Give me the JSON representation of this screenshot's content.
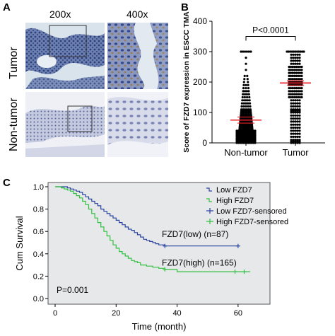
{
  "panel_a": {
    "letter": "A",
    "col_labels": [
      "200x",
      "400x"
    ],
    "row_labels": [
      "Tumor",
      "Non-tumor"
    ]
  },
  "panel_b": {
    "letter": "B"
  },
  "panel_c": {
    "letter": "C"
  },
  "colors": {
    "tumor_tissue": "#6b7fae",
    "tissue_bg": "#dde6ee",
    "nontumor_tissue": "#9aa3c4",
    "mean_line": "#e8202a",
    "low_curve": "#2a43a0",
    "high_curve": "#33c040",
    "plot_bg": "#e6e8ea"
  },
  "chart_data": [
    {
      "type": "scatter",
      "ylabel": "Score of FZD7 expression in ESCC TMA",
      "categories": [
        "Non-tumor",
        "Tumor"
      ],
      "ylim": [
        0,
        400
      ],
      "yticks": [
        0,
        100,
        200,
        300,
        400
      ],
      "annotation": "P<0.0001",
      "series": [
        {
          "name": "Non-tumor",
          "mean": 75,
          "sem_low": 65,
          "sem_high": 85,
          "levels": [
            0,
            5,
            10,
            15,
            20,
            25,
            30,
            35,
            40,
            45,
            50,
            55,
            60,
            65,
            70,
            75,
            80,
            85,
            90,
            95,
            100,
            105,
            110,
            120,
            130,
            140,
            150,
            160,
            170,
            180,
            190,
            200,
            210,
            220,
            240,
            260,
            280,
            300
          ]
        },
        {
          "name": "Tumor",
          "mean": 197,
          "sem_low": 190,
          "sem_high": 204,
          "levels": [
            0,
            5,
            10,
            20,
            30,
            40,
            50,
            60,
            70,
            80,
            90,
            100,
            105,
            110,
            120,
            130,
            140,
            150,
            160,
            170,
            180,
            190,
            195,
            200,
            210,
            220,
            230,
            240,
            250,
            260,
            270,
            280,
            290,
            300
          ]
        }
      ]
    },
    {
      "type": "line",
      "xlabel": "Time (month)",
      "ylabel": "Cum Survival",
      "xlim": [
        0,
        70
      ],
      "ylim": [
        0,
        1.0
      ],
      "xticks": [
        0,
        20,
        40,
        60
      ],
      "yticks": [
        0.0,
        0.2,
        0.4,
        0.6,
        0.8,
        1.0
      ],
      "annotation": "P=0.001",
      "legend": [
        "Low FZD7",
        "High FZD7",
        "Low FZD7-sensored",
        "High FZD7-sensored"
      ],
      "legend_position": "right",
      "curve_labels": [
        "FZD7(low) (n=87)",
        "FZD7(high) (n=165)"
      ],
      "series": [
        {
          "name": "Low FZD7",
          "x": [
            0,
            2,
            4,
            5,
            6,
            7,
            8,
            9,
            10,
            11,
            12,
            13,
            14,
            15,
            16,
            17,
            18,
            19,
            20,
            21,
            22,
            23,
            24,
            25,
            26,
            27,
            28,
            29,
            30,
            31,
            32,
            33,
            34,
            36,
            60
          ],
          "y": [
            1.0,
            1.0,
            0.99,
            0.98,
            0.97,
            0.96,
            0.95,
            0.93,
            0.91,
            0.89,
            0.87,
            0.85,
            0.83,
            0.8,
            0.78,
            0.76,
            0.74,
            0.72,
            0.7,
            0.68,
            0.66,
            0.64,
            0.62,
            0.61,
            0.59,
            0.57,
            0.55,
            0.53,
            0.52,
            0.51,
            0.5,
            0.49,
            0.48,
            0.47,
            0.47
          ]
        },
        {
          "name": "High FZD7",
          "x": [
            0,
            2,
            3,
            4,
            5,
            6,
            7,
            8,
            9,
            10,
            11,
            12,
            13,
            14,
            15,
            16,
            17,
            18,
            19,
            20,
            21,
            22,
            23,
            24,
            25,
            26,
            27,
            28,
            30,
            32,
            34,
            36,
            40,
            64
          ],
          "y": [
            1.0,
            0.99,
            0.98,
            0.97,
            0.96,
            0.94,
            0.92,
            0.9,
            0.87,
            0.84,
            0.8,
            0.76,
            0.72,
            0.68,
            0.64,
            0.6,
            0.56,
            0.52,
            0.48,
            0.45,
            0.42,
            0.4,
            0.38,
            0.36,
            0.34,
            0.33,
            0.32,
            0.3,
            0.29,
            0.28,
            0.27,
            0.26,
            0.24,
            0.24
          ]
        }
      ],
      "censored": [
        {
          "name": "Low FZD7-sensored",
          "x": [
            36,
            60
          ],
          "y": [
            0.47,
            0.47
          ]
        },
        {
          "name": "High FZD7-sensored",
          "x": [
            36,
            59,
            62
          ],
          "y": [
            0.26,
            0.24,
            0.24
          ]
        }
      ]
    }
  ]
}
